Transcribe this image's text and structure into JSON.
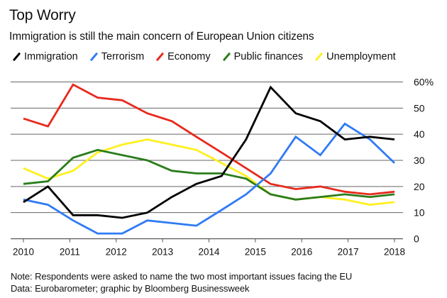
{
  "chart_data": {
    "type": "line",
    "title": "Top Worry",
    "subtitle": "Immigration is still the main concern of European Union citizens",
    "xlabel": "",
    "ylabel": "",
    "x_range": [
      2010,
      2018
    ],
    "x_ticks": [
      "2010",
      "2011",
      "2012",
      "2013",
      "2014",
      "2015",
      "2016",
      "2017",
      "2018"
    ],
    "x_tick_values": [
      2010,
      2011,
      2012,
      2013,
      2014,
      2015,
      2016,
      2017,
      2018
    ],
    "ylim": [
      0,
      60
    ],
    "y_ticks": [
      "0",
      "10",
      "20",
      "30",
      "40",
      "50",
      "60%"
    ],
    "y_tick_values": [
      0,
      10,
      20,
      30,
      40,
      50,
      60
    ],
    "grid": true,
    "legend_position": "top",
    "x": [
      2010.0,
      2010.53,
      2011.07,
      2011.6,
      2012.13,
      2012.67,
      2013.2,
      2013.73,
      2014.27,
      2014.8,
      2015.33,
      2015.87,
      2016.4,
      2016.93,
      2017.47,
      2018.0
    ],
    "series": [
      {
        "name": "Immigration",
        "color": "#000000",
        "values": [
          14,
          20,
          9,
          9,
          8,
          10,
          16,
          21,
          24,
          38,
          58,
          48,
          45,
          38,
          39,
          38
        ]
      },
      {
        "name": "Terrorism",
        "color": "#2f7bf5",
        "values": [
          15,
          13,
          7,
          2,
          2,
          7,
          6,
          5,
          11,
          17,
          25,
          39,
          32,
          44,
          38,
          29
        ]
      },
      {
        "name": "Economy",
        "color": "#e8291c",
        "values": [
          46,
          43,
          59,
          54,
          53,
          48,
          45,
          39,
          33,
          27,
          21,
          19,
          20,
          18,
          17,
          18
        ]
      },
      {
        "name": "Public finances",
        "color": "#2a7d1a",
        "values": [
          21,
          22,
          31,
          34,
          32,
          30,
          26,
          25,
          25,
          23,
          17,
          15,
          16,
          17,
          16,
          17
        ]
      },
      {
        "name": "Unemployment",
        "color": "#fff01f",
        "values": [
          27,
          23,
          26,
          33,
          36,
          38,
          36,
          34,
          29,
          24,
          17,
          15,
          16,
          15,
          13,
          14
        ]
      }
    ]
  },
  "footer": {
    "note": "Note: Respondents were asked to name the two most important issues facing the EU",
    "source": "Data: Eurobarometer; graphic by Bloomberg Businessweek"
  }
}
